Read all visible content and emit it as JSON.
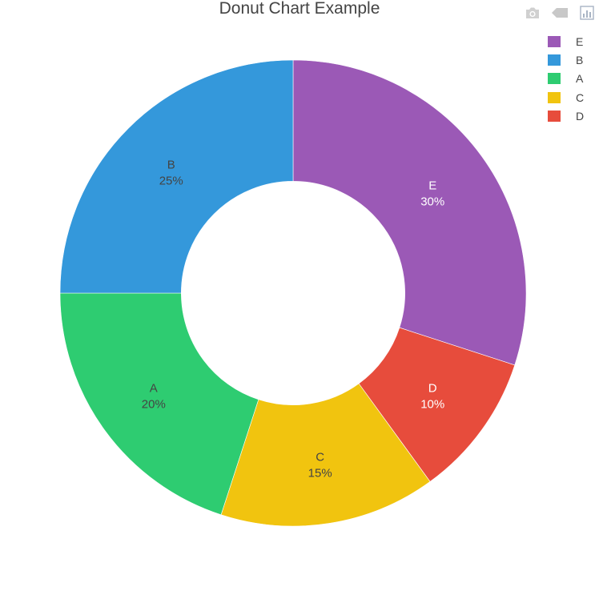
{
  "chart_data": {
    "type": "pie",
    "title": "Donut Chart Example",
    "hole": 0.48,
    "direction": "clockwise",
    "sort": "descending",
    "slices": [
      {
        "label": "E",
        "percent": "30%",
        "value": 30,
        "color": "#9b59b6",
        "text_color": "#ffffff"
      },
      {
        "label": "D",
        "percent": "10%",
        "value": 10,
        "color": "#e74c3c",
        "text_color": "#ffffff"
      },
      {
        "label": "C",
        "percent": "15%",
        "value": 15,
        "color": "#f1c40f",
        "text_color": "#444444"
      },
      {
        "label": "A",
        "percent": "20%",
        "value": 20,
        "color": "#2ecc71",
        "text_color": "#444444"
      },
      {
        "label": "B",
        "percent": "25%",
        "value": 25,
        "color": "#3498db",
        "text_color": "#444444"
      }
    ],
    "legend": {
      "placement": "top-right",
      "items": [
        {
          "label": "E",
          "color": "#9b59b6"
        },
        {
          "label": "B",
          "color": "#3498db"
        },
        {
          "label": "A",
          "color": "#2ecc71"
        },
        {
          "label": "C",
          "color": "#f1c40f"
        },
        {
          "label": "D",
          "color": "#e74c3c"
        }
      ]
    }
  },
  "modebar": {
    "buttons": [
      {
        "name": "camera-icon"
      },
      {
        "name": "tag-icon"
      },
      {
        "name": "bar-chart-icon"
      }
    ],
    "icon_color": "#c8c8c8",
    "active_icon_color": "#a8b4c4"
  }
}
